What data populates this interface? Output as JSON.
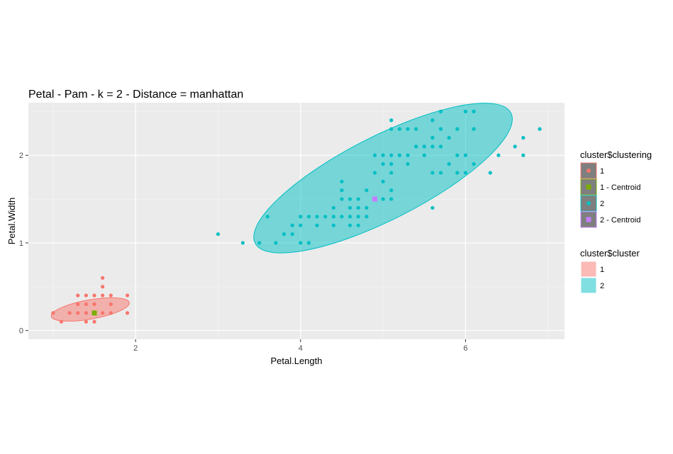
{
  "chart_data": {
    "type": "scatter",
    "title": "Petal - Pam - k = 2 - Distance = manhattan",
    "xlabel": "Petal.Length",
    "ylabel": "Petal.Width",
    "xlim": [
      0.7,
      7.2
    ],
    "ylim": [
      -0.1,
      2.6
    ],
    "x_ticks": [
      2,
      4,
      6
    ],
    "y_ticks": [
      0,
      1,
      2
    ],
    "grid": true,
    "colors": {
      "cluster1": "#F8766D",
      "cluster2": "#00BFC4",
      "centroid1": "#7CAE00",
      "centroid2": "#C77CFF",
      "panel": "#EBEBEB",
      "grid": "#FFFFFF"
    },
    "series": [
      {
        "name": "1",
        "points": [
          [
            1.0,
            0.2
          ],
          [
            1.1,
            0.1
          ],
          [
            1.2,
            0.2
          ],
          [
            1.3,
            0.2
          ],
          [
            1.4,
            0.2
          ],
          [
            1.5,
            0.2
          ],
          [
            1.6,
            0.2
          ],
          [
            1.7,
            0.2
          ],
          [
            1.9,
            0.2
          ],
          [
            1.3,
            0.3
          ],
          [
            1.4,
            0.3
          ],
          [
            1.5,
            0.3
          ],
          [
            1.7,
            0.3
          ],
          [
            1.3,
            0.4
          ],
          [
            1.4,
            0.4
          ],
          [
            1.5,
            0.4
          ],
          [
            1.6,
            0.4
          ],
          [
            1.7,
            0.4
          ],
          [
            1.9,
            0.4
          ],
          [
            1.6,
            0.5
          ],
          [
            1.6,
            0.6
          ],
          [
            1.4,
            0.1
          ],
          [
            1.5,
            0.1
          ]
        ]
      },
      {
        "name": "2",
        "points": [
          [
            3.0,
            1.1
          ],
          [
            3.3,
            1.0
          ],
          [
            3.5,
            1.0
          ],
          [
            3.7,
            1.0
          ],
          [
            3.6,
            1.3
          ],
          [
            3.8,
            1.1
          ],
          [
            3.9,
            1.1
          ],
          [
            4.0,
            1.0
          ],
          [
            4.1,
            1.0
          ],
          [
            3.9,
            1.2
          ],
          [
            4.0,
            1.2
          ],
          [
            4.0,
            1.3
          ],
          [
            4.1,
            1.3
          ],
          [
            4.2,
            1.2
          ],
          [
            4.2,
            1.3
          ],
          [
            4.3,
            1.3
          ],
          [
            4.4,
            1.2
          ],
          [
            4.4,
            1.3
          ],
          [
            4.5,
            1.3
          ],
          [
            4.6,
            1.2
          ],
          [
            4.6,
            1.3
          ],
          [
            4.7,
            1.2
          ],
          [
            4.7,
            1.3
          ],
          [
            4.8,
            1.3
          ],
          [
            4.4,
            1.4
          ],
          [
            4.6,
            1.4
          ],
          [
            4.7,
            1.4
          ],
          [
            4.8,
            1.4
          ],
          [
            4.5,
            1.5
          ],
          [
            4.6,
            1.5
          ],
          [
            4.7,
            1.5
          ],
          [
            4.9,
            1.5
          ],
          [
            5.0,
            1.5
          ],
          [
            5.1,
            1.5
          ],
          [
            4.5,
            1.6
          ],
          [
            4.8,
            1.6
          ],
          [
            5.1,
            1.6
          ],
          [
            4.5,
            1.7
          ],
          [
            5.0,
            1.7
          ],
          [
            4.9,
            1.8
          ],
          [
            5.1,
            1.8
          ],
          [
            5.3,
            1.9
          ],
          [
            4.9,
            2.0
          ],
          [
            5.0,
            1.9
          ],
          [
            5.1,
            1.9
          ],
          [
            5.0,
            2.0
          ],
          [
            5.1,
            2.0
          ],
          [
            5.2,
            2.0
          ],
          [
            5.3,
            2.0
          ],
          [
            5.4,
            2.1
          ],
          [
            5.5,
            2.1
          ],
          [
            5.6,
            2.1
          ],
          [
            5.7,
            2.1
          ],
          [
            5.5,
            2.0
          ],
          [
            5.6,
            1.8
          ],
          [
            5.7,
            1.8
          ],
          [
            5.9,
            1.8
          ],
          [
            6.0,
            1.8
          ],
          [
            5.8,
            1.9
          ],
          [
            5.9,
            2.0
          ],
          [
            6.0,
            2.0
          ],
          [
            5.6,
            2.2
          ],
          [
            5.7,
            2.3
          ],
          [
            5.1,
            2.3
          ],
          [
            5.2,
            2.3
          ],
          [
            5.3,
            2.3
          ],
          [
            5.4,
            2.3
          ],
          [
            5.9,
            2.3
          ],
          [
            6.1,
            2.3
          ],
          [
            5.1,
            2.4
          ],
          [
            5.6,
            2.4
          ],
          [
            5.7,
            2.5
          ],
          [
            6.0,
            2.5
          ],
          [
            6.1,
            2.5
          ],
          [
            5.8,
            2.2
          ],
          [
            6.3,
            1.8
          ],
          [
            6.4,
            2.0
          ],
          [
            6.6,
            2.1
          ],
          [
            6.7,
            2.0
          ],
          [
            6.7,
            2.2
          ],
          [
            6.9,
            2.3
          ],
          [
            6.1,
            1.9
          ],
          [
            5.6,
            1.4
          ],
          [
            5.2,
            2.0
          ],
          [
            5.4,
            2.1
          ]
        ]
      }
    ],
    "centroids": [
      {
        "name": "1 - Centroid",
        "x": 1.5,
        "y": 0.2
      },
      {
        "name": "2 - Centroid",
        "x": 4.9,
        "y": 1.5
      }
    ],
    "ellipses": [
      {
        "cluster": "1",
        "cx": 1.45,
        "cy": 0.24,
        "rx_data": 0.48,
        "ry_data": 0.22,
        "rotate_deg": -10
      },
      {
        "cluster": "2",
        "cx": 5.0,
        "cy": 1.74,
        "rx_data": 1.74,
        "ry_data": 0.95,
        "rotate_deg": -27
      }
    ],
    "legend_placement": "right",
    "legends": [
      {
        "title": "cluster$clustering",
        "items": [
          {
            "label": "1",
            "color": "#F8766D",
            "shape": "circle"
          },
          {
            "label": "1 - Centroid",
            "color": "#7CAE00",
            "shape": "square"
          },
          {
            "label": "2",
            "color": "#00BFC4",
            "shape": "circle"
          },
          {
            "label": "2 - Centroid",
            "color": "#C77CFF",
            "shape": "square"
          }
        ]
      },
      {
        "title": "cluster$cluster",
        "items": [
          {
            "label": "1",
            "color": "#F8766D"
          },
          {
            "label": "2",
            "color": "#00BFC4"
          }
        ]
      }
    ]
  }
}
